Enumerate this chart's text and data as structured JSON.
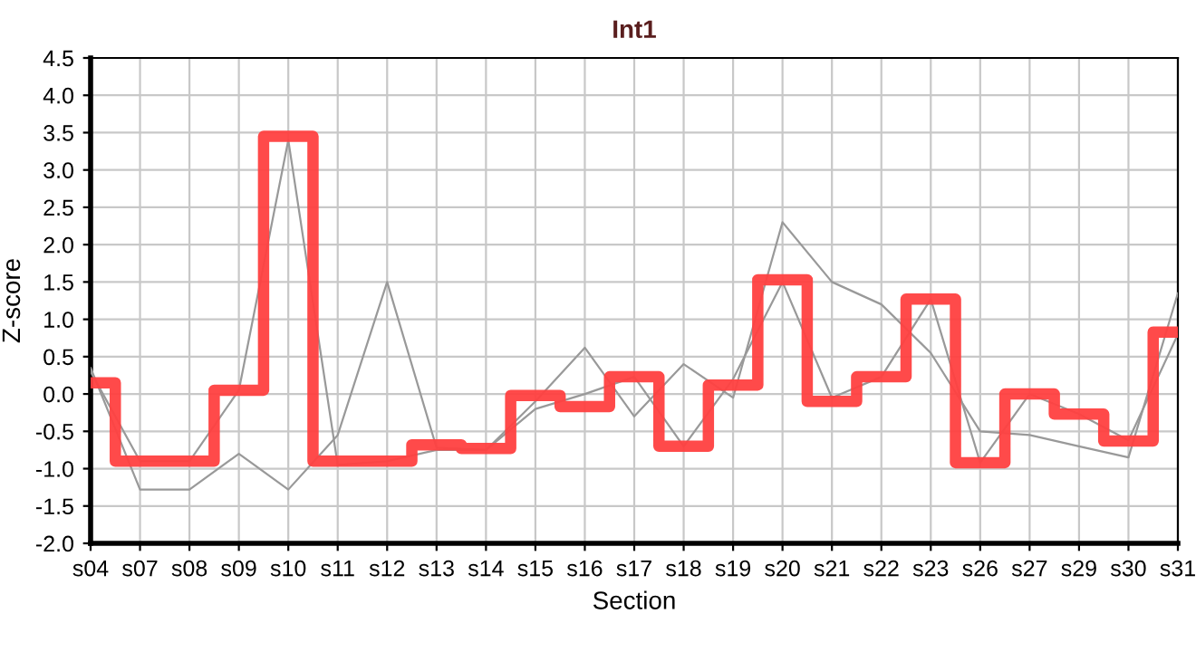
{
  "chart_data": {
    "type": "line",
    "title": "Int1",
    "xlabel": "Section",
    "ylabel": "Z-score",
    "categories": [
      "s04",
      "s07",
      "s08",
      "s09",
      "s10",
      "s11",
      "s12",
      "s13",
      "s14",
      "s15",
      "s16",
      "s17",
      "s18",
      "s19",
      "s20",
      "s21",
      "s22",
      "s23",
      "s26",
      "s27",
      "s29",
      "s30",
      "s31"
    ],
    "series": [
      {
        "color": "#999999",
        "values": [
          0.35,
          -1.28,
          -1.28,
          -0.8,
          -1.28,
          -0.55,
          1.5,
          -0.72,
          -0.75,
          -0.1,
          0.62,
          -0.3,
          0.4,
          -0.05,
          2.3,
          1.5,
          1.2,
          0.55,
          -0.5,
          -0.55,
          -0.7,
          -0.85,
          1.35
        ]
      },
      {
        "color": "#999999",
        "values": [
          0.3,
          -0.9,
          -0.9,
          0.05,
          3.4,
          -0.95,
          -0.9,
          -0.75,
          -0.75,
          -0.2,
          0.0,
          0.23,
          -0.7,
          0.2,
          1.5,
          -0.05,
          0.23,
          1.27,
          -0.92,
          0.0,
          -0.27,
          -0.62,
          0.8
        ]
      },
      {
        "type": "step",
        "color": "#ff4040",
        "values": [
          0.15,
          -0.9,
          -0.9,
          0.05,
          3.45,
          -0.9,
          -0.9,
          -0.68,
          -0.73,
          -0.02,
          -0.17,
          0.23,
          -0.7,
          0.12,
          1.53,
          -0.1,
          0.23,
          1.27,
          -0.92,
          0.0,
          -0.27,
          -0.63,
          0.83
        ]
      }
    ],
    "ylim": [
      -2.0,
      4.5
    ],
    "yticks": [
      {
        "value": -2,
        "label": "-2.0"
      },
      {
        "value": -1.5,
        "label": "-1.5"
      },
      {
        "value": -1,
        "label": "-1.0"
      },
      {
        "value": -0.5,
        "label": "-0.5"
      },
      {
        "value": 0,
        "label": "0.0"
      },
      {
        "value": 0.5,
        "label": "0.5"
      },
      {
        "value": 1,
        "label": "1.0"
      },
      {
        "value": 1.5,
        "label": "1.5"
      },
      {
        "value": 2,
        "label": "2.0"
      },
      {
        "value": 2.5,
        "label": "2.5"
      },
      {
        "value": 3,
        "label": "3.0"
      },
      {
        "value": 3.5,
        "label": "3.5"
      },
      {
        "value": 4,
        "label": "4.0"
      },
      {
        "value": 4.5,
        "label": "4.5"
      }
    ],
    "grid": true
  }
}
